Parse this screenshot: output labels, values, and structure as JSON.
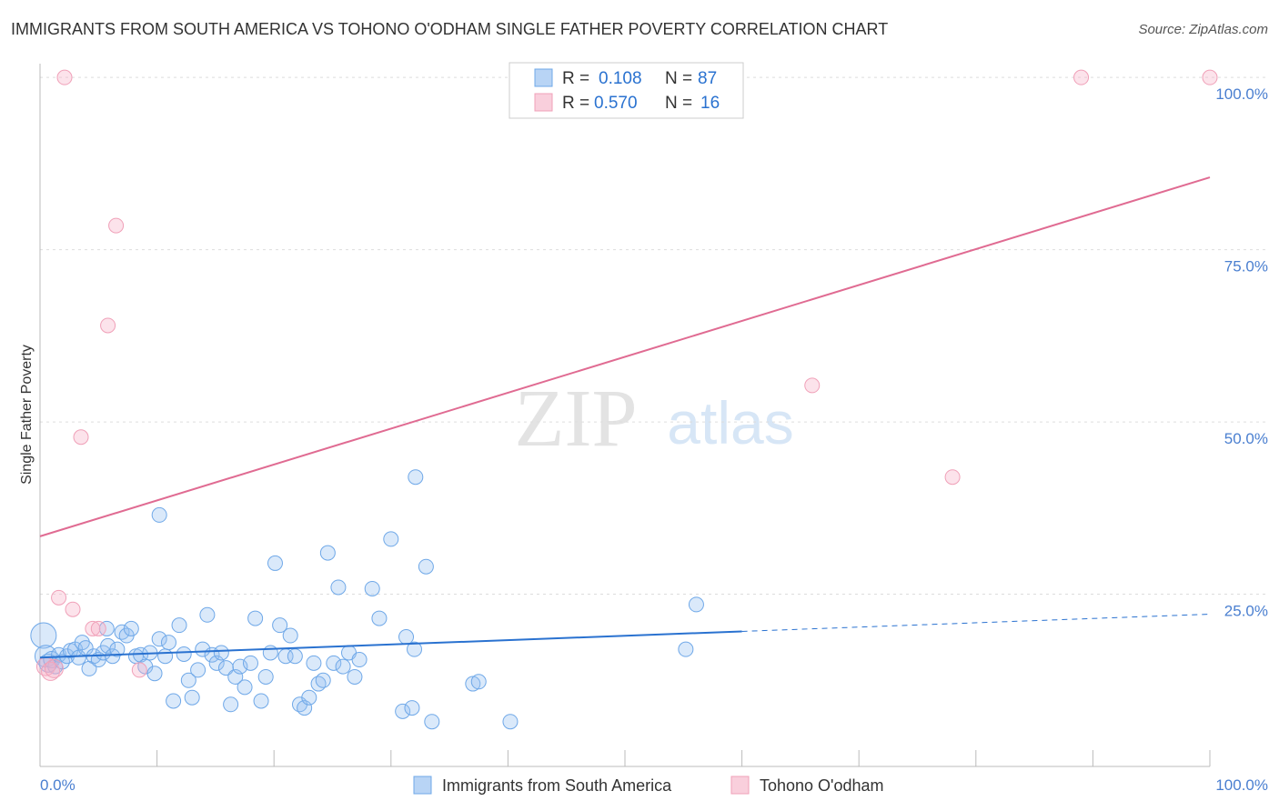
{
  "header": {
    "title": "IMMIGRANTS FROM SOUTH AMERICA VS TOHONO O'ODHAM SINGLE FATHER POVERTY CORRELATION CHART",
    "source": "Source: ZipAtlas.com"
  },
  "watermark": {
    "zip": "ZIP",
    "atlas": "atlas"
  },
  "colors": {
    "blue": "#6fa8e8",
    "blue_line": "#2a72d0",
    "blue_fill": "#b8d4f5",
    "pink": "#f0a0b8",
    "pink_line": "#e06b92",
    "pink_fill": "#f9cfdc",
    "axis_text": "#4a7fd0"
  },
  "legend_top": {
    "rows": [
      {
        "r_label": "R =",
        "r_value": "0.108",
        "n_label": "N =",
        "n_value": "87"
      },
      {
        "r_label": "R =",
        "r_value": "0.570",
        "n_label": "N =",
        "n_value": "16"
      }
    ]
  },
  "legend_bottom": {
    "items": [
      {
        "label": "Immigrants from South America"
      },
      {
        "label": "Tohono O'odham"
      }
    ]
  },
  "chart_data": {
    "type": "scatter",
    "title": "IMMIGRANTS FROM SOUTH AMERICA VS TOHONO O'ODHAM SINGLE FATHER POVERTY CORRELATION CHART",
    "xlabel": "",
    "ylabel": "Single Father Poverty",
    "xlim": [
      0,
      100
    ],
    "ylim": [
      0,
      102
    ],
    "x_tick_labels": [
      "0.0%",
      "100.0%"
    ],
    "y_ticks": [
      25,
      50,
      75,
      100
    ],
    "y_tick_labels": [
      "25.0%",
      "50.0%",
      "75.0%",
      "100.0%"
    ],
    "grid": true,
    "series": [
      {
        "name": "Immigrants from South America",
        "color": "#6fa8e8",
        "R": 0.108,
        "N": 87,
        "trend": {
          "x0": 0,
          "y0": 15.8,
          "x1": 60,
          "y1": 19.6,
          "dash_to_x": 100,
          "dash_to_y": 22.1
        },
        "points": [
          [
            0.3,
            19.0,
            14
          ],
          [
            0.5,
            16.0,
            12
          ],
          [
            0.7,
            15.0,
            10
          ],
          [
            1.0,
            15.5,
            9
          ],
          [
            1.3,
            14.5,
            8
          ],
          [
            1.6,
            16.2,
            8
          ],
          [
            1.9,
            15.2,
            8
          ],
          [
            2.3,
            16.0,
            8
          ],
          [
            2.6,
            16.8,
            8
          ],
          [
            3.0,
            17.0,
            8
          ],
          [
            3.3,
            15.8,
            8
          ],
          [
            3.6,
            18.0,
            8
          ],
          [
            3.9,
            17.2,
            8
          ],
          [
            4.2,
            14.2,
            8
          ],
          [
            4.6,
            16.0,
            8
          ],
          [
            5.0,
            15.5,
            8
          ],
          [
            5.4,
            16.5,
            8
          ],
          [
            5.8,
            17.5,
            8
          ],
          [
            6.2,
            16.0,
            8
          ],
          [
            6.6,
            17.0,
            8
          ],
          [
            7.0,
            19.5,
            8
          ],
          [
            7.4,
            19.0,
            8
          ],
          [
            7.8,
            20.0,
            8
          ],
          [
            8.2,
            16.0,
            8
          ],
          [
            8.6,
            16.2,
            8
          ],
          [
            9.0,
            14.5,
            8
          ],
          [
            9.4,
            16.5,
            8
          ],
          [
            9.8,
            13.5,
            8
          ],
          [
            10.2,
            18.5,
            8
          ],
          [
            10.7,
            16.0,
            8
          ],
          [
            11.0,
            18.0,
            8
          ],
          [
            11.4,
            9.5,
            8
          ],
          [
            11.9,
            20.5,
            8
          ],
          [
            12.3,
            16.3,
            8
          ],
          [
            12.7,
            12.5,
            8
          ],
          [
            13.0,
            10.0,
            8
          ],
          [
            13.5,
            14.0,
            8
          ],
          [
            13.9,
            17.0,
            8
          ],
          [
            14.3,
            22.0,
            8
          ],
          [
            14.7,
            16.2,
            8
          ],
          [
            15.1,
            15.0,
            8
          ],
          [
            15.5,
            16.5,
            8
          ],
          [
            15.9,
            14.3,
            8
          ],
          [
            16.3,
            9.0,
            8
          ],
          [
            16.7,
            13.0,
            8
          ],
          [
            17.1,
            14.5,
            8
          ],
          [
            17.5,
            11.5,
            8
          ],
          [
            18.0,
            15.0,
            8
          ],
          [
            18.4,
            21.5,
            8
          ],
          [
            18.9,
            9.5,
            8
          ],
          [
            19.3,
            13.0,
            8
          ],
          [
            19.7,
            16.5,
            8
          ],
          [
            20.1,
            29.5,
            8
          ],
          [
            20.5,
            20.5,
            8
          ],
          [
            21.0,
            16.0,
            8
          ],
          [
            21.4,
            19.0,
            8
          ],
          [
            21.8,
            16.0,
            8
          ],
          [
            22.2,
            9.0,
            8
          ],
          [
            22.6,
            8.5,
            8
          ],
          [
            23.0,
            10.0,
            8
          ],
          [
            23.4,
            15.0,
            8
          ],
          [
            23.8,
            12.0,
            8
          ],
          [
            24.2,
            12.5,
            8
          ],
          [
            24.6,
            31.0,
            8
          ],
          [
            25.1,
            15.0,
            8
          ],
          [
            25.5,
            26.0,
            8
          ],
          [
            25.9,
            14.5,
            8
          ],
          [
            26.4,
            16.5,
            8
          ],
          [
            26.9,
            13.0,
            8
          ],
          [
            27.3,
            15.5,
            8
          ],
          [
            28.4,
            25.8,
            8
          ],
          [
            29.0,
            21.5,
            8
          ],
          [
            30.0,
            33.0,
            8
          ],
          [
            31.0,
            8.0,
            8
          ],
          [
            31.3,
            18.8,
            8
          ],
          [
            31.8,
            8.5,
            8
          ],
          [
            32.0,
            17.0,
            8
          ],
          [
            33.0,
            29.0,
            8
          ],
          [
            33.5,
            6.5,
            8
          ],
          [
            37.0,
            12.0,
            8
          ],
          [
            37.5,
            12.3,
            8
          ],
          [
            10.2,
            36.5,
            8
          ],
          [
            32.1,
            42.0,
            8
          ],
          [
            40.2,
            6.5,
            8
          ],
          [
            56.1,
            23.5,
            8
          ],
          [
            55.2,
            17.0,
            8
          ],
          [
            5.7,
            20.0,
            8
          ]
        ]
      },
      {
        "name": "Tohono O'odham",
        "color": "#f0a0b8",
        "R": 0.57,
        "N": 16,
        "trend": {
          "x0": 0,
          "y0": 33.4,
          "x1": 100,
          "y1": 85.5
        },
        "points": [
          [
            0.5,
            14.5,
            10
          ],
          [
            0.9,
            13.8,
            10
          ],
          [
            1.2,
            14.2,
            10
          ],
          [
            1.6,
            24.5,
            8
          ],
          [
            2.1,
            100.0,
            8
          ],
          [
            2.8,
            22.8,
            8
          ],
          [
            3.5,
            47.8,
            8
          ],
          [
            4.5,
            20.0,
            8
          ],
          [
            5.8,
            64.0,
            8
          ],
          [
            6.5,
            78.5,
            8
          ],
          [
            8.5,
            14.0,
            8
          ],
          [
            5.0,
            20.0,
            8
          ],
          [
            66.0,
            55.3,
            8
          ],
          [
            78.0,
            42.0,
            8
          ],
          [
            89.0,
            100.0,
            8
          ],
          [
            100.0,
            100.0,
            8
          ]
        ]
      }
    ]
  }
}
